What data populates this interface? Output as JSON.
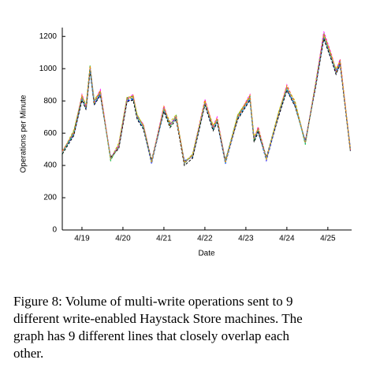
{
  "chart_data": {
    "type": "line",
    "ylabel": "Operations per Minute",
    "xlabel": "Date",
    "xlim": [
      18.52,
      25.58
    ],
    "ylim": [
      0,
      1250
    ],
    "yticks": [
      0,
      200,
      400,
      600,
      800,
      1000,
      1200
    ],
    "xticks": [
      {
        "value": 19,
        "label": "4/19"
      },
      {
        "value": 20,
        "label": "4/20"
      },
      {
        "value": 21,
        "label": "4/21"
      },
      {
        "value": 22,
        "label": "4/22"
      },
      {
        "value": 23,
        "label": "4/23"
      },
      {
        "value": 24,
        "label": "4/24"
      },
      {
        "value": 25,
        "label": "4/25"
      }
    ],
    "x": [
      18.52,
      18.8,
      19.0,
      19.1,
      19.2,
      19.3,
      19.45,
      19.7,
      19.9,
      20.1,
      20.25,
      20.35,
      20.5,
      20.7,
      21.0,
      21.15,
      21.3,
      21.5,
      21.7,
      22.0,
      22.2,
      22.3,
      22.5,
      22.8,
      23.1,
      23.2,
      23.3,
      23.5,
      23.8,
      24.0,
      24.2,
      24.45,
      24.7,
      24.9,
      25.1,
      25.2,
      25.3,
      25.55
    ],
    "series": [
      {
        "color": "#ff0000",
        "values": [
          480,
          600,
          820,
          760,
          1000,
          790,
          850,
          440,
          520,
          810,
          820,
          700,
          640,
          420,
          750,
          650,
          700,
          420,
          460,
          790,
          630,
          680,
          420,
          700,
          820,
          560,
          620,
          440,
          720,
          880,
          780,
          540,
          900,
          1200,
          1060,
          980,
          1040,
          500
        ]
      },
      {
        "color": "#00aa00",
        "values": [
          470,
          610,
          830,
          770,
          1020,
          800,
          860,
          430,
          530,
          820,
          830,
          710,
          650,
          430,
          760,
          640,
          710,
          410,
          470,
          800,
          640,
          690,
          430,
          710,
          830,
          550,
          630,
          450,
          730,
          890,
          790,
          530,
          910,
          1220,
          1070,
          990,
          1050,
          490
        ]
      },
      {
        "color": "#0000ff",
        "values": [
          490,
          590,
          810,
          750,
          990,
          780,
          840,
          450,
          510,
          800,
          810,
          690,
          630,
          410,
          740,
          660,
          690,
          430,
          450,
          780,
          620,
          670,
          410,
          690,
          810,
          570,
          610,
          430,
          710,
          870,
          770,
          550,
          890,
          1190,
          1050,
          970,
          1030,
          510
        ]
      },
      {
        "color": "#ff00ff",
        "values": [
          485,
          605,
          840,
          765,
          1010,
          795,
          870,
          445,
          525,
          815,
          840,
          705,
          655,
          425,
          770,
          655,
          705,
          415,
          465,
          810,
          645,
          700,
          425,
          705,
          840,
          565,
          640,
          445,
          725,
          900,
          785,
          545,
          905,
          1230,
          1080,
          985,
          1060,
          495
        ]
      },
      {
        "color": "#00cccc",
        "values": [
          475,
          595,
          815,
          755,
          995,
          785,
          845,
          435,
          515,
          805,
          815,
          695,
          635,
          415,
          745,
          645,
          695,
          425,
          455,
          785,
          625,
          675,
          415,
          695,
          815,
          555,
          615,
          435,
          715,
          875,
          775,
          535,
          895,
          1195,
          1055,
          975,
          1035,
          505
        ]
      },
      {
        "color": "#cccc00",
        "values": [
          480,
          620,
          825,
          780,
          1005,
          810,
          855,
          440,
          540,
          825,
          825,
          715,
          645,
          420,
          755,
          670,
          715,
          420,
          470,
          795,
          650,
          685,
          420,
          715,
          825,
          580,
          625,
          440,
          735,
          885,
          800,
          540,
          915,
          1210,
          1065,
          1000,
          1045,
          500
        ]
      },
      {
        "color": "#000000",
        "values": [
          470,
          585,
          805,
          745,
          985,
          775,
          835,
          450,
          505,
          795,
          805,
          685,
          625,
          430,
          735,
          635,
          685,
          400,
          445,
          775,
          615,
          665,
          430,
          685,
          805,
          545,
          605,
          450,
          705,
          865,
          765,
          550,
          885,
          1185,
          1045,
          965,
          1025,
          490
        ]
      },
      {
        "color": "#ff8800",
        "values": [
          490,
          600,
          835,
          760,
          1015,
          790,
          865,
          440,
          520,
          810,
          835,
          700,
          650,
          420,
          765,
          650,
          700,
          420,
          460,
          805,
          635,
          695,
          420,
          700,
          835,
          560,
          635,
          440,
          720,
          895,
          780,
          540,
          900,
          1215,
          1075,
          980,
          1055,
          500
        ]
      },
      {
        "color": "#888888",
        "values": [
          480,
          610,
          820,
          770,
          1000,
          800,
          850,
          445,
          525,
          815,
          820,
          705,
          640,
          425,
          750,
          655,
          705,
          415,
          465,
          790,
          630,
          680,
          425,
          705,
          820,
          565,
          620,
          445,
          725,
          880,
          785,
          545,
          905,
          1205,
          1060,
          985,
          1040,
          505
        ]
      }
    ],
    "caption": [
      "Figure 8:  Volume of multi-write operations sent to 9",
      "different write-enabled Haystack Store machines.  The",
      "graph has 9 different lines that closely overlap each",
      "other."
    ]
  }
}
